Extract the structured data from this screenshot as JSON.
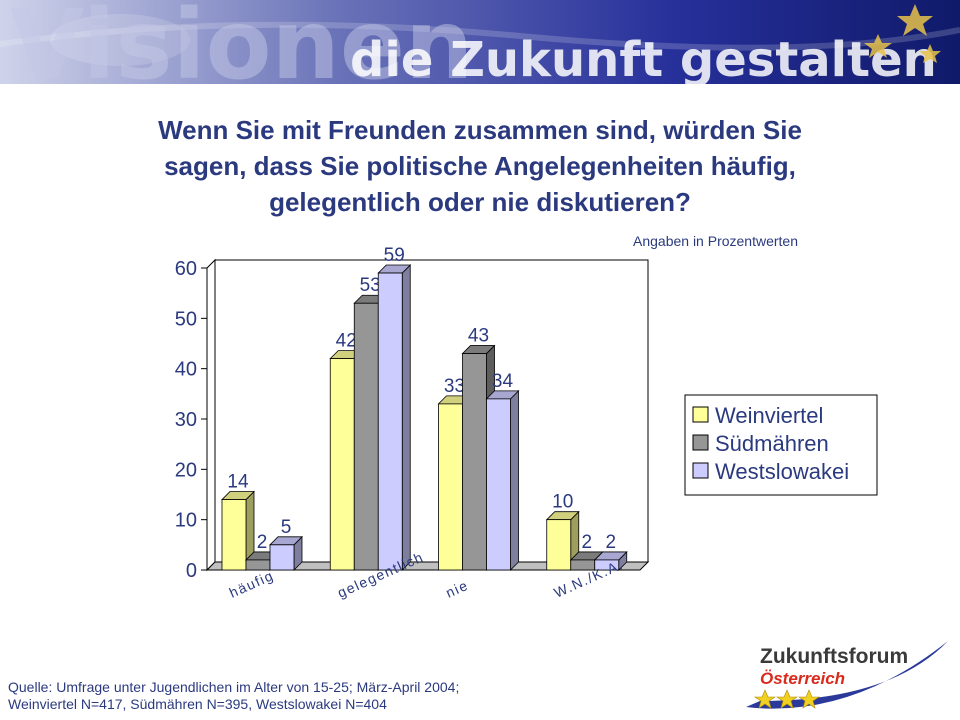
{
  "banner": {
    "word1": "Visionen",
    "word2": "die Zukunft gestalten"
  },
  "title_lines": [
    "Wenn Sie mit Freunden zusammen sind, würden Sie",
    "sagen, dass Sie politische Angelegenheiten häufig,",
    "gelegentlich oder nie diskutieren?"
  ],
  "unit_note": "Angaben in  Prozentwerten",
  "source": {
    "line1": "Quelle: Umfrage unter Jugendlichen im Alter von 15-25; März-April 2004;",
    "line2": "Weinviertel N=417, Südmähren N=395, Westslowakei N=404"
  },
  "logo": {
    "line1": "Zukunftsforum",
    "line2": "Österreich"
  },
  "colors": {
    "title": "#2b3a7f",
    "series": [
      "#ffff99",
      "#969696",
      "#ccccff"
    ],
    "banner": "#27309a",
    "logo_red": "#d92a1c"
  },
  "chart_data": {
    "type": "bar",
    "style": "3d-clustered",
    "categories": [
      "häufig",
      "gelegentlich",
      "nie",
      "W.N./K.A."
    ],
    "series": [
      {
        "name": "Weinviertel",
        "values": [
          14,
          42,
          33,
          10
        ]
      },
      {
        "name": "Südmähren",
        "values": [
          2,
          53,
          43,
          2
        ]
      },
      {
        "name": "Westslowakei",
        "values": [
          5,
          59,
          34,
          2
        ]
      }
    ],
    "ylim": [
      0,
      60
    ],
    "yticks": [
      0,
      10,
      20,
      30,
      40,
      50,
      60
    ],
    "legend_position": "right",
    "grid": false,
    "data_labels": true
  }
}
